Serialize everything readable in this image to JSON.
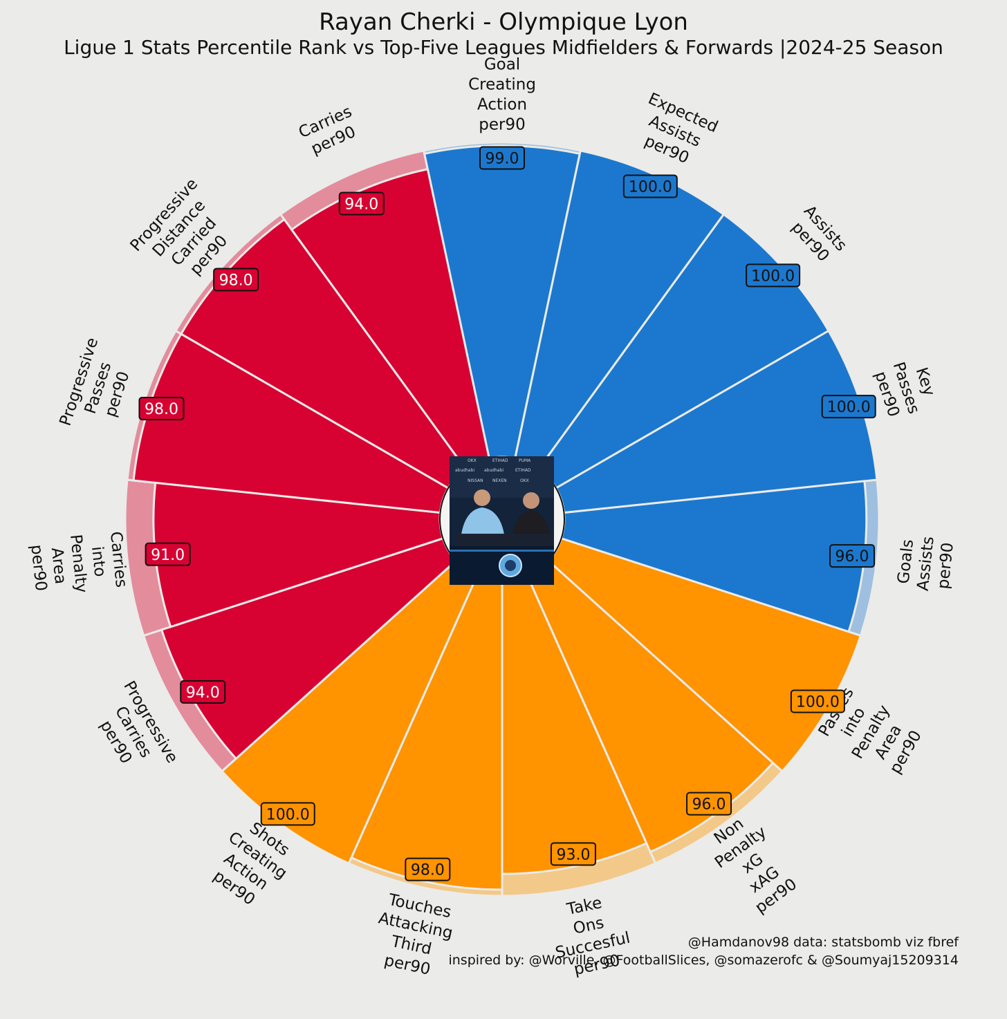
{
  "title": "Rayan Cherki - Olympique Lyon",
  "subtitle": "Ligue 1 Stats Percentile Rank vs Top-Five Leagues Midfielders & Forwards |2024-25 Season",
  "credits": {
    "line1": "@Hamdanov98 data: statsbomb viz fbref",
    "line2": "inspired by: @Worville, @FootballSlices, @somazerofc & @Soumyaj15209314"
  },
  "center_image": {
    "icon": "player-photo-icon"
  },
  "colors": {
    "background": "#ebebe9",
    "blue": "#1c78ce",
    "blue_light": "#9ebfdf",
    "red": "#d70232",
    "red_light": "#e38c9c",
    "orange": "#ff9300",
    "orange_light": "#f3c98a"
  },
  "chart_data": {
    "type": "pizza",
    "range": [
      0,
      100
    ],
    "slices": [
      {
        "label": [
          "Goal",
          "Creating",
          "Action",
          "per90"
        ],
        "value": 99.0,
        "value_label": "99.0",
        "group": "blue"
      },
      {
        "label": [
          "Expected",
          "Assists",
          "per90"
        ],
        "value": 100.0,
        "value_label": "100.0",
        "group": "blue"
      },
      {
        "label": [
          "Assists",
          "per90"
        ],
        "value": 100.0,
        "value_label": "100.0",
        "group": "blue"
      },
      {
        "label": [
          "Key",
          "Passes",
          "per90"
        ],
        "value": 100.0,
        "value_label": "100.0",
        "group": "blue"
      },
      {
        "label": [
          "Goals",
          "Assists",
          "per90"
        ],
        "value": 96.0,
        "value_label": "96.0",
        "group": "blue"
      },
      {
        "label": [
          "Passes",
          "into",
          "Penalty",
          "Area",
          "per90"
        ],
        "value": 100.0,
        "value_label": "100.0",
        "group": "orange"
      },
      {
        "label": [
          "Non",
          "Penalty",
          "xG",
          "xAG",
          "per90"
        ],
        "value": 96.0,
        "value_label": "96.0",
        "group": "orange"
      },
      {
        "label": [
          "Take",
          "Ons",
          "Succesful",
          "per90"
        ],
        "value": 93.0,
        "value_label": "93.0",
        "group": "orange"
      },
      {
        "label": [
          "Touches",
          "Attacking",
          "Third",
          "per90"
        ],
        "value": 98.0,
        "value_label": "98.0",
        "group": "orange"
      },
      {
        "label": [
          "Shots",
          "Creating",
          "Action",
          "per90"
        ],
        "value": 100.0,
        "value_label": "100.0",
        "group": "orange"
      },
      {
        "label": [
          "Progressive",
          "Carries",
          "per90"
        ],
        "value": 94.0,
        "value_label": "94.0",
        "group": "red"
      },
      {
        "label": [
          "Carries",
          "into",
          "Penalty",
          "Area",
          "per90"
        ],
        "value": 91.0,
        "value_label": "91.0",
        "group": "red"
      },
      {
        "label": [
          "Progressive",
          "Passes",
          "per90"
        ],
        "value": 98.0,
        "value_label": "98.0",
        "group": "red"
      },
      {
        "label": [
          "Progressive",
          "Distance",
          "Carried",
          "per90"
        ],
        "value": 98.0,
        "value_label": "98.0",
        "group": "red"
      },
      {
        "label": [
          "Carries",
          "per90"
        ],
        "value": 94.0,
        "value_label": "94.0",
        "group": "red"
      }
    ]
  }
}
